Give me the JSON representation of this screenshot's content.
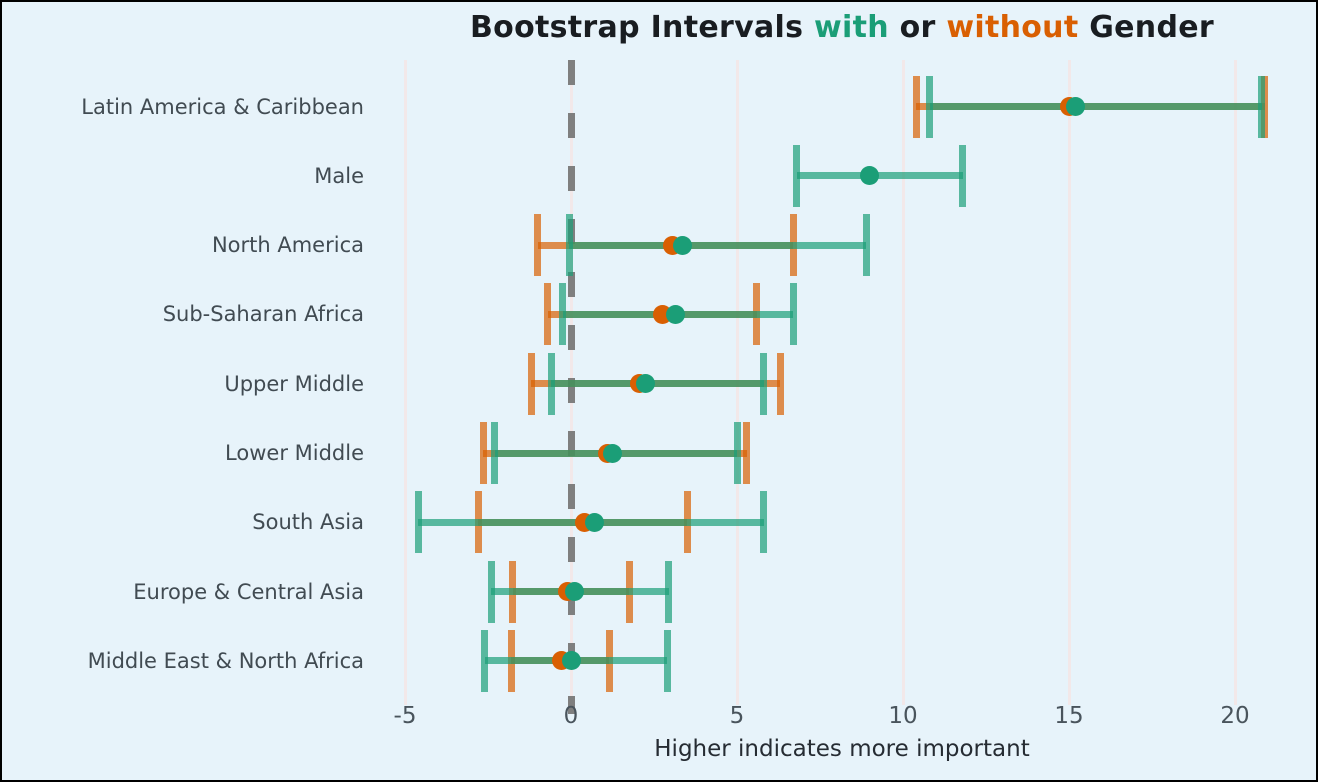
{
  "chart_data": {
    "type": "errorbar",
    "title_parts": [
      {
        "text": "Bootstrap Intervals ",
        "color": "#191d21"
      },
      {
        "text": "with",
        "color": "#1b9e77"
      },
      {
        "text": " or ",
        "color": "#191d21"
      },
      {
        "text": "without",
        "color": "#d95f02"
      },
      {
        "text": " Gender",
        "color": "#191d21"
      }
    ],
    "title_plain": "Bootstrap Intervals with or without Gender",
    "xlabel": "Higher indicates more important",
    "x_ticks": [
      {
        "value": -5,
        "label": "-5"
      },
      {
        "value": 0,
        "label": "0"
      },
      {
        "value": 5,
        "label": "5"
      },
      {
        "value": 10,
        "label": "10"
      },
      {
        "value": 15,
        "label": "15"
      },
      {
        "value": 20,
        "label": "20"
      }
    ],
    "xlim": [
      -5.5,
      22.3
    ],
    "zero_reference": 0,
    "grid": true,
    "legend": [
      {
        "name": "with Gender",
        "color": "#1b9e77"
      },
      {
        "name": "without Gender",
        "color": "#d95f02"
      }
    ],
    "rows": [
      {
        "label": "Latin America & Caribbean",
        "with_gender": {
          "low": 10.8,
          "center": 15.2,
          "high": 20.8
        },
        "without_gender": {
          "low": 10.4,
          "center": 15.0,
          "high": 20.9
        }
      },
      {
        "label": "Male",
        "with_gender": {
          "low": 6.8,
          "center": 9.0,
          "high": 11.8
        },
        "without_gender": null
      },
      {
        "label": "North America",
        "with_gender": {
          "low": -0.05,
          "center": 3.35,
          "high": 8.9
        },
        "without_gender": {
          "low": -1.0,
          "center": 3.05,
          "high": 6.7
        }
      },
      {
        "label": "Sub-Saharan Africa",
        "with_gender": {
          "low": -0.25,
          "center": 3.15,
          "high": 6.7
        },
        "without_gender": {
          "low": -0.7,
          "center": 2.75,
          "high": 5.6
        }
      },
      {
        "label": "Upper Middle",
        "with_gender": {
          "low": -0.6,
          "center": 2.25,
          "high": 5.8
        },
        "without_gender": {
          "low": -1.2,
          "center": 2.05,
          "high": 6.3
        }
      },
      {
        "label": "Lower Middle",
        "with_gender": {
          "low": -2.3,
          "center": 1.25,
          "high": 5.0
        },
        "without_gender": {
          "low": -2.65,
          "center": 1.1,
          "high": 5.3
        }
      },
      {
        "label": "South Asia",
        "with_gender": {
          "low": -4.6,
          "center": 0.7,
          "high": 5.8
        },
        "without_gender": {
          "low": -2.8,
          "center": 0.4,
          "high": 3.5
        }
      },
      {
        "label": "Europe & Central Asia",
        "with_gender": {
          "low": -2.4,
          "center": 0.1,
          "high": 2.95
        },
        "without_gender": {
          "low": -1.75,
          "center": -0.1,
          "high": 1.75
        }
      },
      {
        "label": "Middle East & North Africa",
        "with_gender": {
          "low": -2.6,
          "center": 0.0,
          "high": 2.9
        },
        "without_gender": {
          "low": -1.8,
          "center": -0.3,
          "high": 1.15
        }
      }
    ],
    "colors": {
      "background": "#e7f3fa",
      "green": "#1b9e77",
      "orange": "#d95f02",
      "green_alpha": "rgba(27,158,119,0.7)",
      "orange_alpha": "rgba(217,95,2,0.7)",
      "gridline": "#f2e8e9",
      "zero_line": "#7f7f7f",
      "label_text": "#414b52",
      "title_text": "#191d21"
    }
  }
}
